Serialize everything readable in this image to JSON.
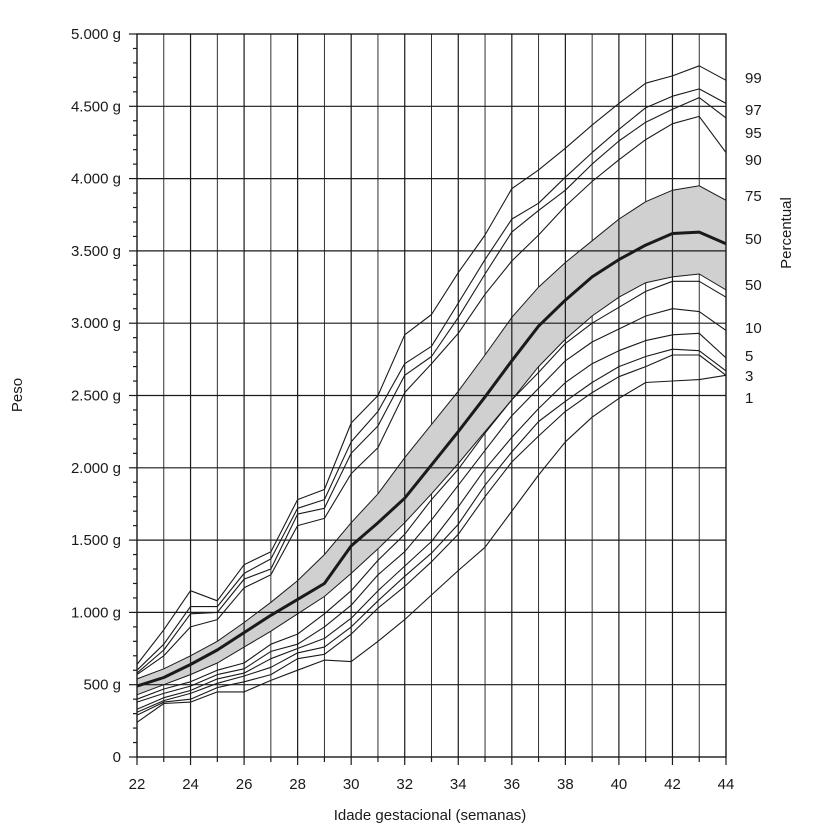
{
  "chart_data": {
    "type": "line",
    "title": "",
    "xlabel": "Idade gestacional (semanas)",
    "ylabel": "Peso",
    "right_axis_title": "Percentual",
    "xlim": [
      22,
      44
    ],
    "ylim": [
      0,
      5000
    ],
    "grid": true,
    "x_major_ticks": [
      22,
      24,
      26,
      28,
      30,
      32,
      34,
      36,
      38,
      40,
      42,
      44
    ],
    "x_tick_labels": [
      "22",
      "24",
      "26",
      "28",
      "30",
      "32",
      "34",
      "36",
      "38",
      "40",
      "42",
      "44"
    ],
    "y_major_ticks": [
      0,
      500,
      1000,
      1500,
      2000,
      2500,
      3000,
      3500,
      4000,
      4500,
      5000
    ],
    "y_tick_labels": [
      "0",
      "500 g",
      "1.000 g",
      "1.500 g",
      "2.000 g",
      "2.500 g",
      "3.000 g",
      "3.500 g",
      "4.000 g",
      "4.500 g",
      "5.000 g"
    ],
    "percentile_labels": [
      "99",
      "97",
      "95",
      "90",
      "75",
      "50",
      "50",
      "10",
      "5",
      "3",
      "1"
    ],
    "band": {
      "color": "#d0d0d0",
      "upper": [
        [
          22,
          540
        ],
        [
          23,
          610
        ],
        [
          24,
          700
        ],
        [
          25,
          800
        ],
        [
          26,
          930
        ],
        [
          27,
          1070
        ],
        [
          28,
          1220
        ],
        [
          29,
          1400
        ],
        [
          30,
          1620
        ],
        [
          31,
          1820
        ],
        [
          32,
          2070
        ],
        [
          33,
          2300
        ],
        [
          34,
          2530
        ],
        [
          35,
          2780
        ],
        [
          36,
          3040
        ],
        [
          37,
          3250
        ],
        [
          38,
          3420
        ],
        [
          39,
          3570
        ],
        [
          40,
          3720
        ],
        [
          41,
          3840
        ],
        [
          42,
          3920
        ],
        [
          43,
          3950
        ],
        [
          44,
          3850
        ]
      ],
      "lower": [
        [
          22,
          430
        ],
        [
          23,
          500
        ],
        [
          24,
          570
        ],
        [
          25,
          650
        ],
        [
          26,
          760
        ],
        [
          27,
          870
        ],
        [
          28,
          990
        ],
        [
          29,
          1110
        ],
        [
          30,
          1270
        ],
        [
          31,
          1440
        ],
        [
          32,
          1620
        ],
        [
          33,
          1820
        ],
        [
          34,
          2030
        ],
        [
          35,
          2250
        ],
        [
          36,
          2470
        ],
        [
          37,
          2700
        ],
        [
          38,
          2890
        ],
        [
          39,
          3050
        ],
        [
          40,
          3180
        ],
        [
          41,
          3280
        ],
        [
          42,
          3320
        ],
        [
          43,
          3340
        ],
        [
          44,
          3230
        ]
      ]
    },
    "series": [
      {
        "bold": false,
        "points": [
          [
            22,
            640
          ],
          [
            23,
            880
          ],
          [
            24,
            1150
          ],
          [
            25,
            1080
          ],
          [
            26,
            1330
          ],
          [
            27,
            1420
          ],
          [
            28,
            1780
          ],
          [
            29,
            1850
          ],
          [
            30,
            2310
          ],
          [
            31,
            2500
          ],
          [
            32,
            2920
          ],
          [
            33,
            3060
          ],
          [
            34,
            3350
          ],
          [
            35,
            3610
          ],
          [
            36,
            3930
          ],
          [
            37,
            4060
          ],
          [
            38,
            4210
          ],
          [
            39,
            4370
          ],
          [
            40,
            4520
          ],
          [
            41,
            4660
          ],
          [
            42,
            4710
          ],
          [
            43,
            4780
          ],
          [
            44,
            4680
          ]
        ]
      },
      {
        "bold": false,
        "points": [
          [
            22,
            600
          ],
          [
            23,
            780
          ],
          [
            24,
            1040
          ],
          [
            25,
            1040
          ],
          [
            26,
            1270
          ],
          [
            27,
            1370
          ],
          [
            28,
            1720
          ],
          [
            29,
            1780
          ],
          [
            30,
            2180
          ],
          [
            31,
            2390
          ],
          [
            32,
            2720
          ],
          [
            33,
            2840
          ],
          [
            34,
            3140
          ],
          [
            35,
            3440
          ],
          [
            36,
            3720
          ],
          [
            37,
            3830
          ],
          [
            38,
            4010
          ],
          [
            39,
            4180
          ],
          [
            40,
            4340
          ],
          [
            41,
            4490
          ],
          [
            42,
            4570
          ],
          [
            43,
            4620
          ],
          [
            44,
            4520
          ]
        ]
      },
      {
        "bold": false,
        "points": [
          [
            22,
            580
          ],
          [
            23,
            740
          ],
          [
            24,
            990
          ],
          [
            25,
            1000
          ],
          [
            26,
            1230
          ],
          [
            27,
            1300
          ],
          [
            28,
            1680
          ],
          [
            29,
            1720
          ],
          [
            30,
            2100
          ],
          [
            31,
            2290
          ],
          [
            32,
            2640
          ],
          [
            33,
            2770
          ],
          [
            34,
            3040
          ],
          [
            35,
            3340
          ],
          [
            36,
            3630
          ],
          [
            37,
            3780
          ],
          [
            38,
            3920
          ],
          [
            39,
            4100
          ],
          [
            40,
            4260
          ],
          [
            41,
            4390
          ],
          [
            42,
            4480
          ],
          [
            43,
            4560
          ],
          [
            44,
            4420
          ]
        ]
      },
      {
        "bold": false,
        "points": [
          [
            22,
            570
          ],
          [
            23,
            700
          ],
          [
            24,
            900
          ],
          [
            25,
            950
          ],
          [
            26,
            1170
          ],
          [
            27,
            1260
          ],
          [
            28,
            1600
          ],
          [
            29,
            1650
          ],
          [
            30,
            1960
          ],
          [
            31,
            2140
          ],
          [
            32,
            2520
          ],
          [
            33,
            2720
          ],
          [
            34,
            2930
          ],
          [
            35,
            3200
          ],
          [
            36,
            3430
          ],
          [
            37,
            3610
          ],
          [
            38,
            3810
          ],
          [
            39,
            3980
          ],
          [
            40,
            4130
          ],
          [
            41,
            4270
          ],
          [
            42,
            4380
          ],
          [
            43,
            4430
          ],
          [
            44,
            4180
          ]
        ]
      },
      {
        "bold": true,
        "points": [
          [
            22,
            490
          ],
          [
            23,
            550
          ],
          [
            24,
            640
          ],
          [
            25,
            740
          ],
          [
            26,
            860
          ],
          [
            27,
            980
          ],
          [
            28,
            1090
          ],
          [
            29,
            1200
          ],
          [
            30,
            1460
          ],
          [
            31,
            1620
          ],
          [
            32,
            1790
          ],
          [
            33,
            2020
          ],
          [
            34,
            2250
          ],
          [
            35,
            2490
          ],
          [
            36,
            2740
          ],
          [
            37,
            2980
          ],
          [
            38,
            3160
          ],
          [
            39,
            3320
          ],
          [
            40,
            3440
          ],
          [
            41,
            3540
          ],
          [
            42,
            3620
          ],
          [
            43,
            3630
          ],
          [
            44,
            3550
          ]
        ]
      },
      {
        "bold": false,
        "points": [
          [
            22,
            400
          ],
          [
            23,
            470
          ],
          [
            24,
            520
          ],
          [
            25,
            600
          ],
          [
            26,
            650
          ],
          [
            27,
            780
          ],
          [
            28,
            850
          ],
          [
            29,
            990
          ],
          [
            30,
            1150
          ],
          [
            31,
            1360
          ],
          [
            32,
            1540
          ],
          [
            33,
            1780
          ],
          [
            34,
            1990
          ],
          [
            35,
            2240
          ],
          [
            36,
            2470
          ],
          [
            37,
            2660
          ],
          [
            38,
            2860
          ],
          [
            39,
            3000
          ],
          [
            40,
            3110
          ],
          [
            41,
            3220
          ],
          [
            42,
            3290
          ],
          [
            43,
            3290
          ],
          [
            44,
            3180
          ]
        ]
      },
      {
        "bold": false,
        "points": [
          [
            22,
            380
          ],
          [
            23,
            440
          ],
          [
            24,
            490
          ],
          [
            25,
            570
          ],
          [
            26,
            610
          ],
          [
            27,
            730
          ],
          [
            28,
            780
          ],
          [
            29,
            900
          ],
          [
            30,
            1050
          ],
          [
            31,
            1260
          ],
          [
            32,
            1420
          ],
          [
            33,
            1640
          ],
          [
            34,
            1880
          ],
          [
            35,
            2120
          ],
          [
            36,
            2360
          ],
          [
            37,
            2550
          ],
          [
            38,
            2740
          ],
          [
            39,
            2870
          ],
          [
            40,
            2960
          ],
          [
            41,
            3050
          ],
          [
            42,
            3100
          ],
          [
            43,
            3080
          ],
          [
            44,
            2950
          ]
        ]
      },
      {
        "bold": false,
        "points": [
          [
            22,
            330
          ],
          [
            23,
            410
          ],
          [
            24,
            460
          ],
          [
            25,
            540
          ],
          [
            26,
            580
          ],
          [
            27,
            680
          ],
          [
            28,
            750
          ],
          [
            29,
            820
          ],
          [
            30,
            960
          ],
          [
            31,
            1150
          ],
          [
            32,
            1320
          ],
          [
            33,
            1490
          ],
          [
            34,
            1730
          ],
          [
            35,
            1990
          ],
          [
            36,
            2210
          ],
          [
            37,
            2410
          ],
          [
            38,
            2590
          ],
          [
            39,
            2720
          ],
          [
            40,
            2810
          ],
          [
            41,
            2880
          ],
          [
            42,
            2920
          ],
          [
            43,
            2930
          ],
          [
            44,
            2760
          ]
        ]
      },
      {
        "bold": false,
        "points": [
          [
            22,
            310
          ],
          [
            23,
            390
          ],
          [
            24,
            440
          ],
          [
            25,
            510
          ],
          [
            26,
            560
          ],
          [
            27,
            620
          ],
          [
            28,
            720
          ],
          [
            29,
            760
          ],
          [
            30,
            900
          ],
          [
            31,
            1080
          ],
          [
            32,
            1250
          ],
          [
            33,
            1410
          ],
          [
            34,
            1610
          ],
          [
            35,
            1880
          ],
          [
            36,
            2110
          ],
          [
            37,
            2320
          ],
          [
            38,
            2460
          ],
          [
            39,
            2590
          ],
          [
            40,
            2700
          ],
          [
            41,
            2770
          ],
          [
            42,
            2820
          ],
          [
            43,
            2810
          ],
          [
            44,
            2670
          ]
        ]
      },
      {
        "bold": false,
        "points": [
          [
            22,
            290
          ],
          [
            23,
            380
          ],
          [
            24,
            400
          ],
          [
            25,
            480
          ],
          [
            26,
            520
          ],
          [
            27,
            570
          ],
          [
            28,
            680
          ],
          [
            29,
            710
          ],
          [
            30,
            850
          ],
          [
            31,
            1030
          ],
          [
            32,
            1180
          ],
          [
            33,
            1350
          ],
          [
            34,
            1540
          ],
          [
            35,
            1800
          ],
          [
            36,
            2040
          ],
          [
            37,
            2220
          ],
          [
            38,
            2390
          ],
          [
            39,
            2520
          ],
          [
            40,
            2630
          ],
          [
            41,
            2700
          ],
          [
            42,
            2780
          ],
          [
            43,
            2780
          ],
          [
            44,
            2640
          ]
        ]
      },
      {
        "bold": false,
        "points": [
          [
            22,
            240
          ],
          [
            23,
            370
          ],
          [
            24,
            380
          ],
          [
            25,
            450
          ],
          [
            26,
            450
          ],
          [
            27,
            530
          ],
          [
            28,
            600
          ],
          [
            29,
            670
          ],
          [
            30,
            660
          ],
          [
            31,
            800
          ],
          [
            32,
            950
          ],
          [
            33,
            1120
          ],
          [
            34,
            1290
          ],
          [
            35,
            1450
          ],
          [
            36,
            1700
          ],
          [
            37,
            1950
          ],
          [
            38,
            2180
          ],
          [
            39,
            2350
          ],
          [
            40,
            2480
          ],
          [
            41,
            2590
          ],
          [
            42,
            2600
          ],
          [
            43,
            2610
          ],
          [
            44,
            2640
          ]
        ]
      }
    ]
  }
}
